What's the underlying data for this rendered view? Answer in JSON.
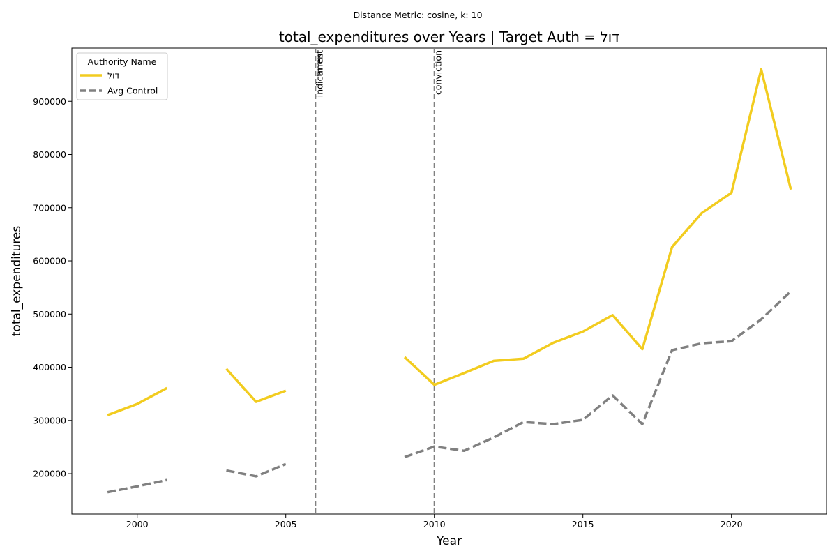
{
  "suptitle": "Distance Metric: cosine, k: 10",
  "chart_data": {
    "type": "line",
    "title": "total_expenditures over Years | Target Auth = דול",
    "xlabel": "Year",
    "ylabel": "total_expenditures",
    "xlim": [
      1997.8,
      2023.2
    ],
    "ylim": [
      124000,
      1000000
    ],
    "x_ticks": [
      2000,
      2005,
      2010,
      2015,
      2020
    ],
    "x_tick_labels": [
      "2000",
      "2005",
      "2010",
      "2015",
      "2020"
    ],
    "y_ticks": [
      200000,
      300000,
      400000,
      500000,
      600000,
      700000,
      800000,
      900000
    ],
    "y_tick_labels": [
      "200000",
      "300000",
      "400000",
      "500000",
      "600000",
      "700000",
      "800000",
      "900000"
    ],
    "grid": false,
    "legend": {
      "title": "Authority Name",
      "placement": "top-left"
    },
    "series": [
      {
        "name": "דול",
        "color": "#f2cc1f",
        "style": "solid",
        "points": [
          [
            1999,
            310000
          ],
          [
            2000,
            331000
          ],
          [
            2001,
            361000
          ],
          [
            2002,
            null
          ],
          [
            2003,
            397000
          ],
          [
            2004,
            335000
          ],
          [
            2005,
            356000
          ],
          [
            2006,
            null
          ],
          [
            2007,
            null
          ],
          [
            2008,
            null
          ],
          [
            2009,
            419000
          ],
          [
            2010,
            367000
          ],
          [
            2011,
            389000
          ],
          [
            2012,
            412000
          ],
          [
            2013,
            416000
          ],
          [
            2014,
            446000
          ],
          [
            2015,
            467000
          ],
          [
            2016,
            498000
          ],
          [
            2017,
            434000
          ],
          [
            2018,
            626000
          ],
          [
            2019,
            690000
          ],
          [
            2020,
            728000
          ],
          [
            2021,
            960000
          ],
          [
            2022,
            734000
          ]
        ]
      },
      {
        "name": "Avg Control",
        "color": "#808080",
        "style": "dashed",
        "points": [
          [
            1999,
            165000
          ],
          [
            2000,
            176000
          ],
          [
            2001,
            188000
          ],
          [
            2002,
            null
          ],
          [
            2003,
            206000
          ],
          [
            2004,
            195000
          ],
          [
            2005,
            218000
          ],
          [
            2006,
            null
          ],
          [
            2007,
            null
          ],
          [
            2008,
            null
          ],
          [
            2009,
            231000
          ],
          [
            2010,
            251000
          ],
          [
            2011,
            243000
          ],
          [
            2012,
            268000
          ],
          [
            2013,
            297000
          ],
          [
            2014,
            293000
          ],
          [
            2015,
            301000
          ],
          [
            2016,
            347000
          ],
          [
            2017,
            293000
          ],
          [
            2018,
            432000
          ],
          [
            2019,
            445000
          ],
          [
            2020,
            449000
          ],
          [
            2021,
            490000
          ],
          [
            2022,
            543000
          ]
        ]
      }
    ],
    "events": [
      {
        "x": 2006,
        "labels": [
          "indictment",
          "arrest"
        ]
      },
      {
        "x": 2010,
        "labels": [
          "conviction"
        ]
      }
    ]
  }
}
